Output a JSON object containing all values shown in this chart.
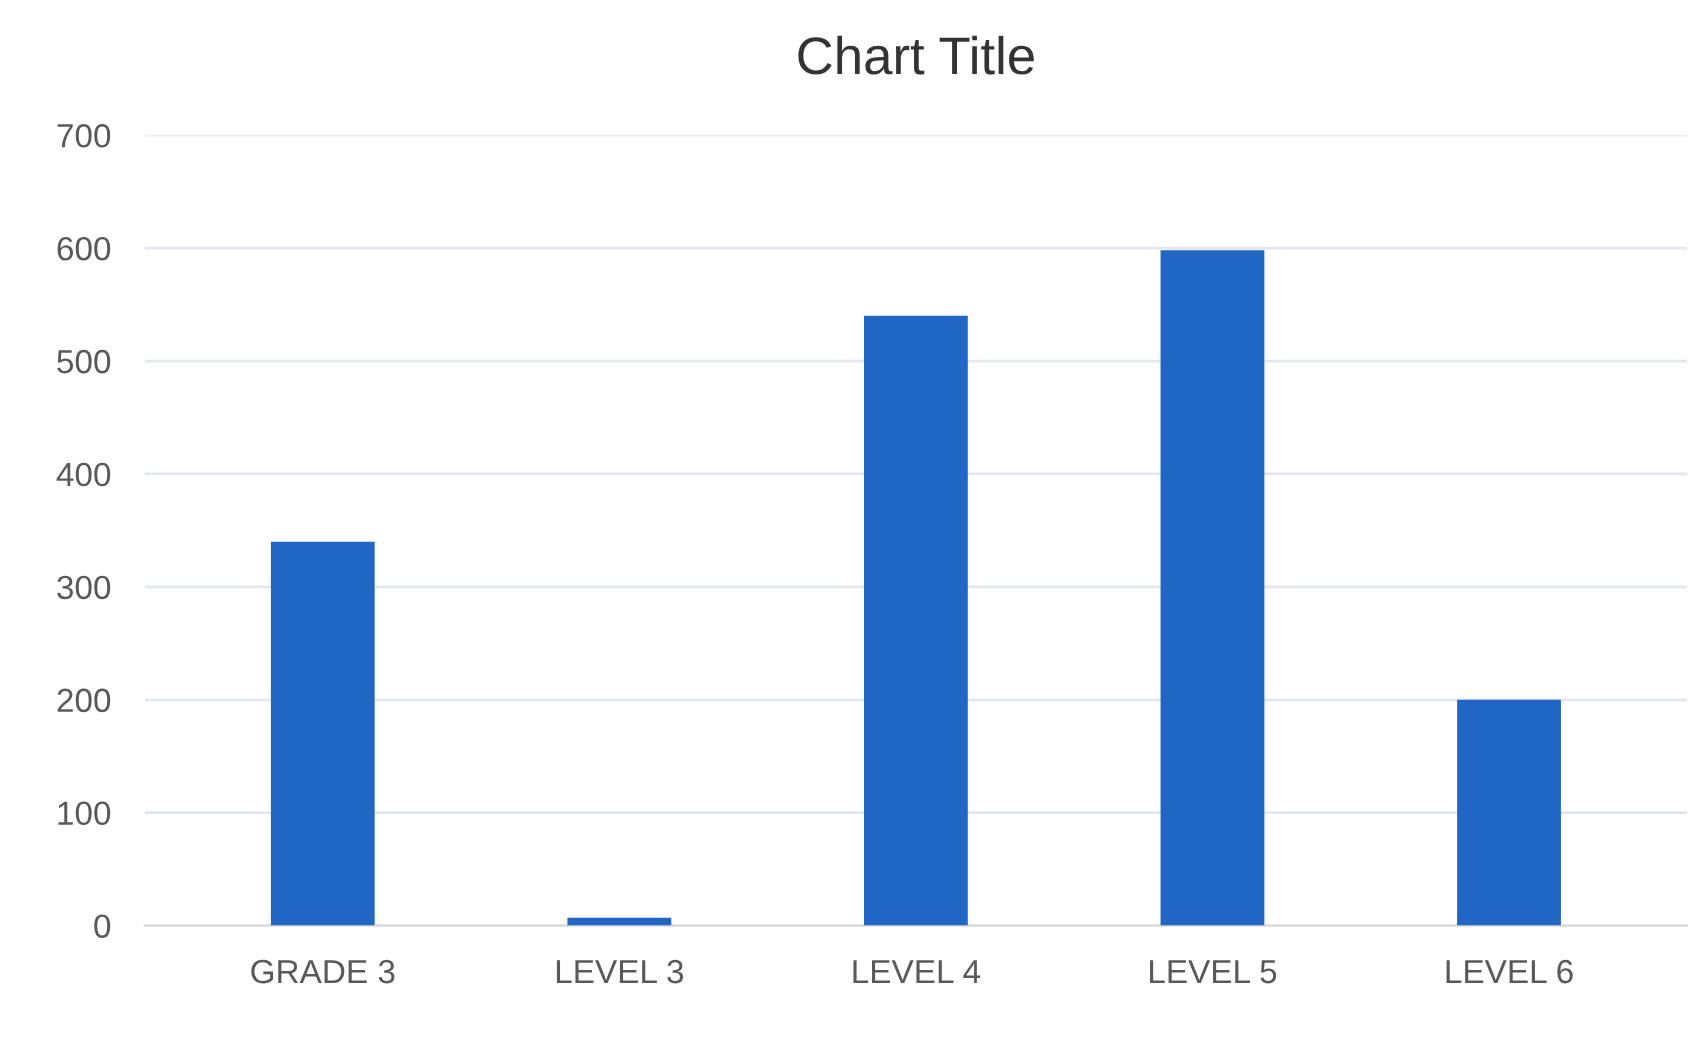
{
  "chart_data": {
    "type": "bar",
    "title": "Chart Title",
    "categories": [
      "GRADE 3",
      "LEVEL 3",
      "LEVEL 4",
      "LEVEL 5",
      "LEVEL 6"
    ],
    "values": [
      340,
      7,
      540,
      598,
      200
    ],
    "color": "#2166c4",
    "ylim": [
      0,
      700
    ],
    "yticks": [
      0,
      100,
      200,
      300,
      400,
      500,
      600,
      700
    ],
    "grid": "y",
    "legend": false
  }
}
